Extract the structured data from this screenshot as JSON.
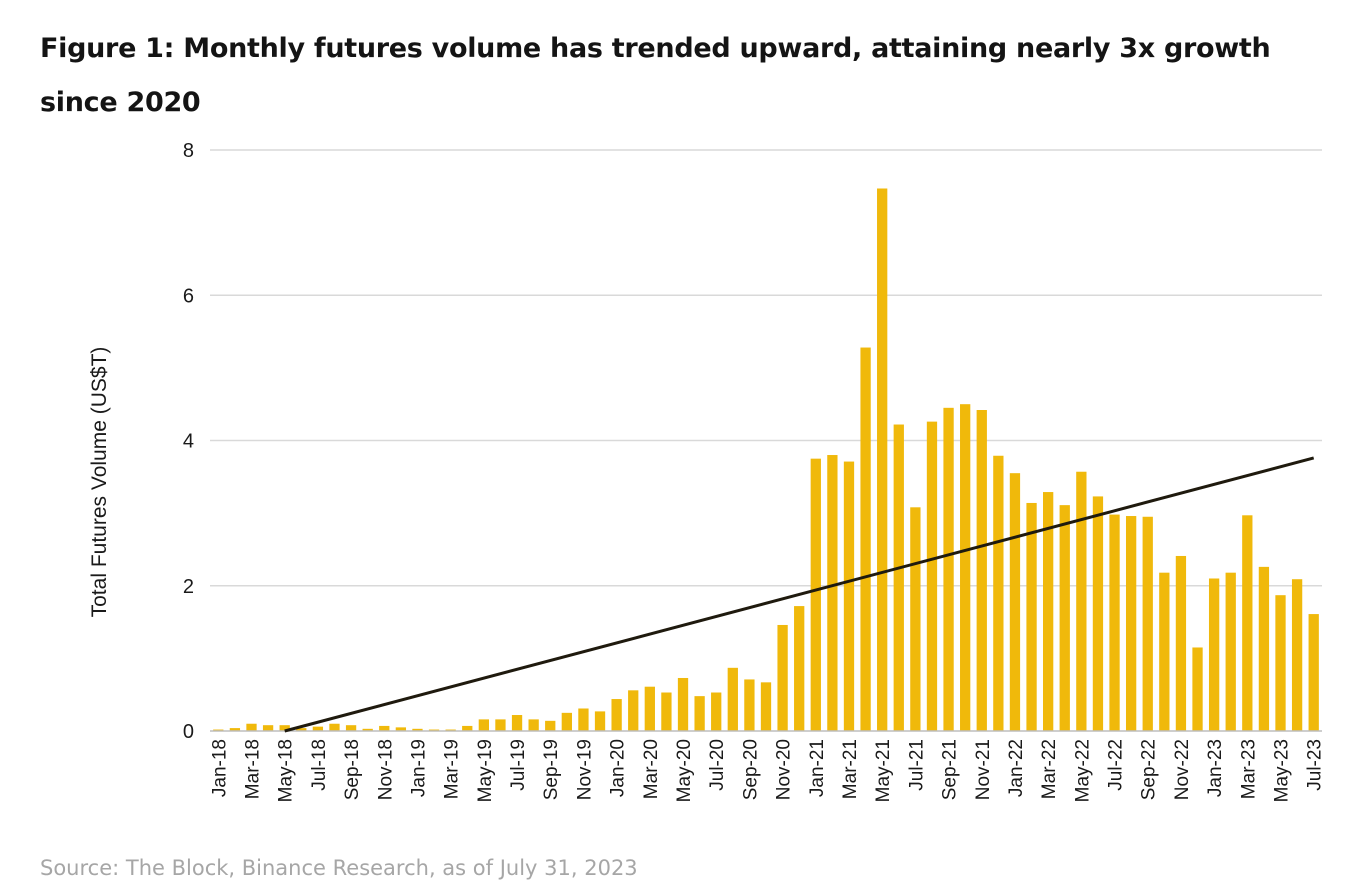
{
  "title": "Figure 1: Monthly futures volume has trended upward, attaining nearly 3x growth since 2020",
  "source": "Source: The Block, Binance Research, as of July 31, 2023",
  "colors": {
    "bar": "#F0B90B",
    "trend": "#1f1a0e",
    "grid": "#d9d9d9"
  },
  "chart_data": {
    "type": "bar",
    "ylabel": "Total Futures Volume (US$T)",
    "ylim": [
      0,
      8
    ],
    "yticks": [
      0,
      2,
      4,
      6,
      8
    ],
    "grid": true,
    "categories": [
      "Jan-18",
      "Feb-18",
      "Mar-18",
      "Apr-18",
      "May-18",
      "Jun-18",
      "Jul-18",
      "Aug-18",
      "Sep-18",
      "Oct-18",
      "Nov-18",
      "Dec-18",
      "Jan-19",
      "Feb-19",
      "Mar-19",
      "Apr-19",
      "May-19",
      "Jun-19",
      "Jul-19",
      "Aug-19",
      "Sep-19",
      "Oct-19",
      "Nov-19",
      "Dec-19",
      "Jan-20",
      "Feb-20",
      "Mar-20",
      "Apr-20",
      "May-20",
      "Jun-20",
      "Jul-20",
      "Aug-20",
      "Sep-20",
      "Oct-20",
      "Nov-20",
      "Dec-20",
      "Jan-21",
      "Feb-21",
      "Mar-21",
      "Apr-21",
      "May-21",
      "Jun-21",
      "Jul-21",
      "Aug-21",
      "Sep-21",
      "Oct-21",
      "Nov-21",
      "Dec-21",
      "Jan-22",
      "Feb-22",
      "Mar-22",
      "Apr-22",
      "May-22",
      "Jun-22",
      "Jul-22",
      "Aug-22",
      "Sep-22",
      "Oct-22",
      "Nov-22",
      "Dec-22",
      "Jan-23",
      "Feb-23",
      "Mar-23",
      "Apr-23",
      "May-23",
      "Jun-23",
      "Jul-23"
    ],
    "xtick_labels": [
      "Jan-18",
      "Mar-18",
      "May-18",
      "Jul-18",
      "Sep-18",
      "Nov-18",
      "Jan-19",
      "Mar-19",
      "May-19",
      "Jul-19",
      "Sep-19",
      "Nov-19",
      "Jan-20",
      "Mar-20",
      "May-20",
      "Jul-20",
      "Sep-20",
      "Nov-20",
      "Jan-21",
      "Mar-21",
      "May-21",
      "Jul-21",
      "Sep-21",
      "Nov-21",
      "Jan-22",
      "Mar-22",
      "May-22",
      "Jul-22",
      "Sep-22",
      "Nov-22",
      "Jan-23",
      "Mar-23",
      "May-23",
      "Jul-23"
    ],
    "values": [
      0.02,
      0.04,
      0.1,
      0.08,
      0.08,
      0.04,
      0.06,
      0.1,
      0.08,
      0.03,
      0.07,
      0.05,
      0.03,
      0.02,
      0.02,
      0.07,
      0.16,
      0.16,
      0.22,
      0.16,
      0.14,
      0.25,
      0.31,
      0.27,
      0.44,
      0.56,
      0.61,
      0.53,
      0.73,
      0.48,
      0.53,
      0.87,
      0.71,
      0.67,
      1.46,
      1.72,
      3.75,
      3.8,
      3.71,
      5.28,
      7.47,
      4.22,
      3.08,
      4.26,
      4.45,
      4.5,
      4.42,
      3.79,
      3.55,
      3.14,
      3.29,
      3.11,
      3.57,
      3.23,
      2.98,
      2.96,
      2.95,
      2.18,
      2.41,
      1.15,
      2.1,
      2.18,
      2.97,
      2.26,
      1.87,
      2.09,
      1.61
    ],
    "trendline": {
      "start": [
        "May-18",
        0.0
      ],
      "end": [
        "Jul-23",
        3.76
      ]
    }
  }
}
